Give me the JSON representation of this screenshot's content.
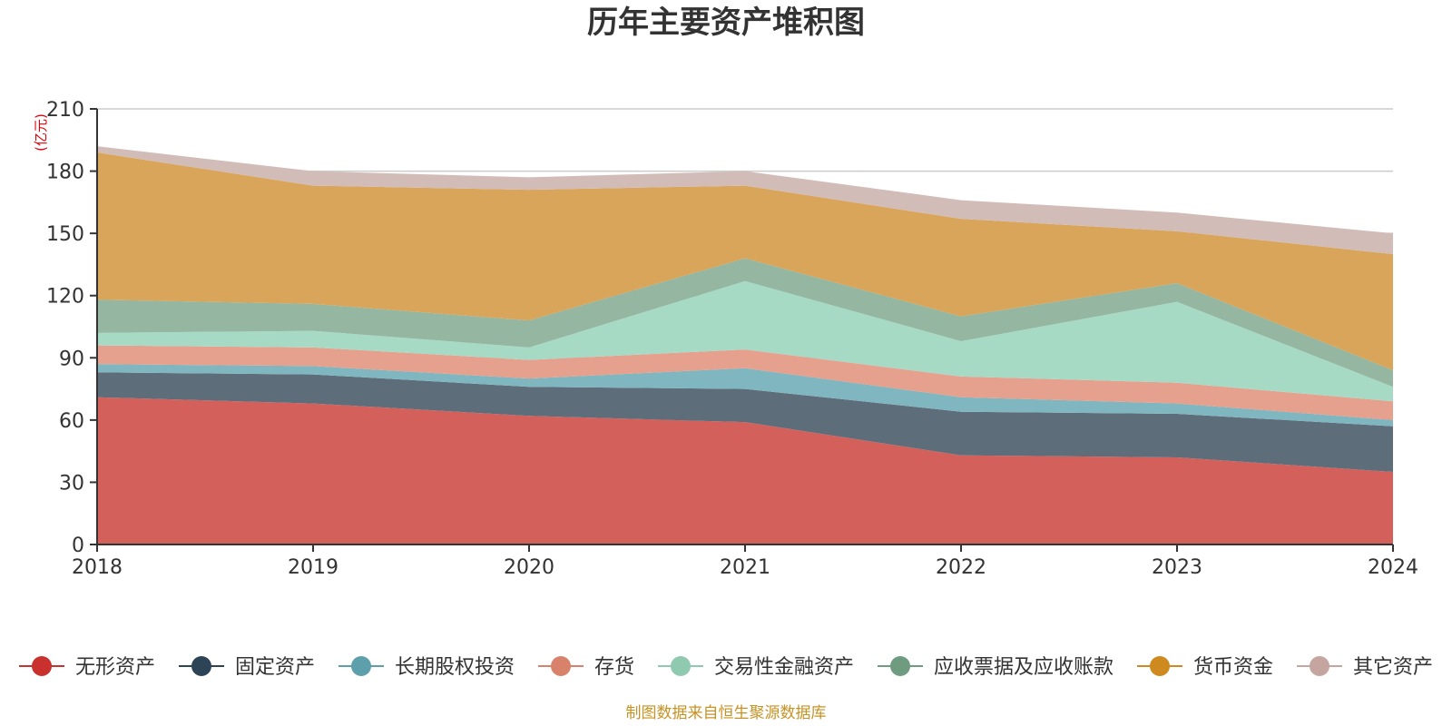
{
  "chart_data": {
    "type": "area",
    "stacked": true,
    "title": "历年主要资产堆积图",
    "unit_label": "(亿元)",
    "x": [
      "2018",
      "2019",
      "2020",
      "2021",
      "2022",
      "2023",
      "2024"
    ],
    "ylim": [
      0,
      210
    ],
    "yticks": [
      "0",
      "30",
      "60",
      "90",
      "120",
      "150",
      "180",
      "210"
    ],
    "grid": true,
    "legend_position": "bottom",
    "series": [
      {
        "name": "无形资产",
        "color": "#d4605c",
        "marker": "#c9312e",
        "values": [
          71,
          68,
          62,
          59,
          43,
          42,
          35
        ]
      },
      {
        "name": "固定资产",
        "color": "#5e6d7a",
        "marker": "#2d4356",
        "values": [
          12,
          14,
          14,
          16,
          21,
          21,
          22
        ]
      },
      {
        "name": "长期股权投资",
        "color": "#7fb6bf",
        "marker": "#5d9faa",
        "values": [
          4,
          4,
          4,
          10,
          7,
          5,
          3
        ]
      },
      {
        "name": "存货",
        "color": "#e5a08e",
        "marker": "#d9826b",
        "values": [
          9,
          9,
          9,
          9,
          10,
          10,
          9
        ]
      },
      {
        "name": "交易性金融资产",
        "color": "#a7dac5",
        "marker": "#8fcab0",
        "values": [
          6,
          8,
          6,
          33,
          17,
          39,
          7
        ]
      },
      {
        "name": "应收票据及应收账款",
        "color": "#95b6a0",
        "marker": "#6f9c81",
        "values": [
          16,
          13,
          13,
          11,
          12,
          9,
          8
        ]
      },
      {
        "name": "货币资金",
        "color": "#d9a55a",
        "marker": "#cf8a1f",
        "values": [
          71,
          57,
          63,
          35,
          47,
          25,
          56
        ]
      },
      {
        "name": "其它资产",
        "color": "#d2bcb8",
        "marker": "#c4a59f",
        "values": [
          3,
          7,
          6,
          7,
          9,
          9,
          10
        ]
      }
    ],
    "source_note": "制图数据来自恒生聚源数据库"
  }
}
